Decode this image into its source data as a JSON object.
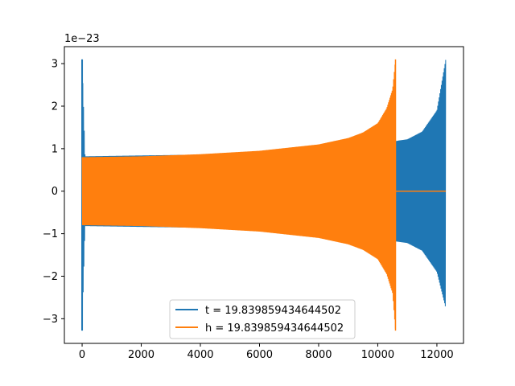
{
  "chart_data": {
    "type": "line",
    "title": "",
    "xlabel": "",
    "ylabel": "",
    "y_scale_label": "1e−23",
    "xlim": [
      -600,
      12900
    ],
    "ylim": [
      -3.58,
      3.4
    ],
    "x_ticks": [
      0,
      2000,
      4000,
      6000,
      8000,
      10000,
      12000
    ],
    "x_tick_labels": [
      "0",
      "2000",
      "4000",
      "6000",
      "8000",
      "10000",
      "12000"
    ],
    "y_ticks": [
      -3,
      -2,
      -1,
      0,
      1,
      2,
      3
    ],
    "y_tick_labels": [
      "−3",
      "−2",
      "−1",
      "0",
      "1",
      "2",
      "3"
    ],
    "grid": false,
    "legend_position": "lower-center",
    "series": [
      {
        "name": "t = 19.839859434644502",
        "color": "#1f77b4",
        "envelope_upper": [
          [
            0,
            3.1
          ],
          [
            100,
            0.82
          ],
          [
            2000,
            0.84
          ],
          [
            4000,
            0.86
          ],
          [
            6000,
            0.9
          ],
          [
            8000,
            0.98
          ],
          [
            10000,
            1.12
          ],
          [
            10600,
            1.18
          ],
          [
            11000,
            1.22
          ],
          [
            11500,
            1.4
          ],
          [
            12000,
            1.9
          ],
          [
            12300,
            3.1
          ]
        ],
        "envelope_lower": [
          [
            0,
            -3.28
          ],
          [
            100,
            -0.82
          ],
          [
            2000,
            -0.84
          ],
          [
            4000,
            -0.86
          ],
          [
            6000,
            -0.9
          ],
          [
            8000,
            -0.98
          ],
          [
            10000,
            -1.12
          ],
          [
            10600,
            -1.18
          ],
          [
            11000,
            -1.22
          ],
          [
            11500,
            -1.4
          ],
          [
            12000,
            -1.9
          ],
          [
            12300,
            -2.75
          ]
        ]
      },
      {
        "name": "h = 19.839859434644502",
        "color": "#ff7f0e",
        "envelope_upper": [
          [
            0,
            0.8
          ],
          [
            2000,
            0.82
          ],
          [
            4000,
            0.87
          ],
          [
            6000,
            0.95
          ],
          [
            8000,
            1.1
          ],
          [
            9000,
            1.25
          ],
          [
            9500,
            1.38
          ],
          [
            10000,
            1.6
          ],
          [
            10300,
            1.95
          ],
          [
            10500,
            2.4
          ],
          [
            10600,
            3.1
          ]
        ],
        "envelope_lower": [
          [
            0,
            -0.8
          ],
          [
            2000,
            -0.82
          ],
          [
            4000,
            -0.87
          ],
          [
            6000,
            -0.95
          ],
          [
            8000,
            -1.1
          ],
          [
            9000,
            -1.25
          ],
          [
            9500,
            -1.38
          ],
          [
            10000,
            -1.6
          ],
          [
            10300,
            -1.95
          ],
          [
            10500,
            -2.4
          ],
          [
            10600,
            -3.28
          ]
        ],
        "flat_after": [
          [
            10600,
            0
          ],
          [
            12300,
            0
          ]
        ]
      }
    ]
  }
}
